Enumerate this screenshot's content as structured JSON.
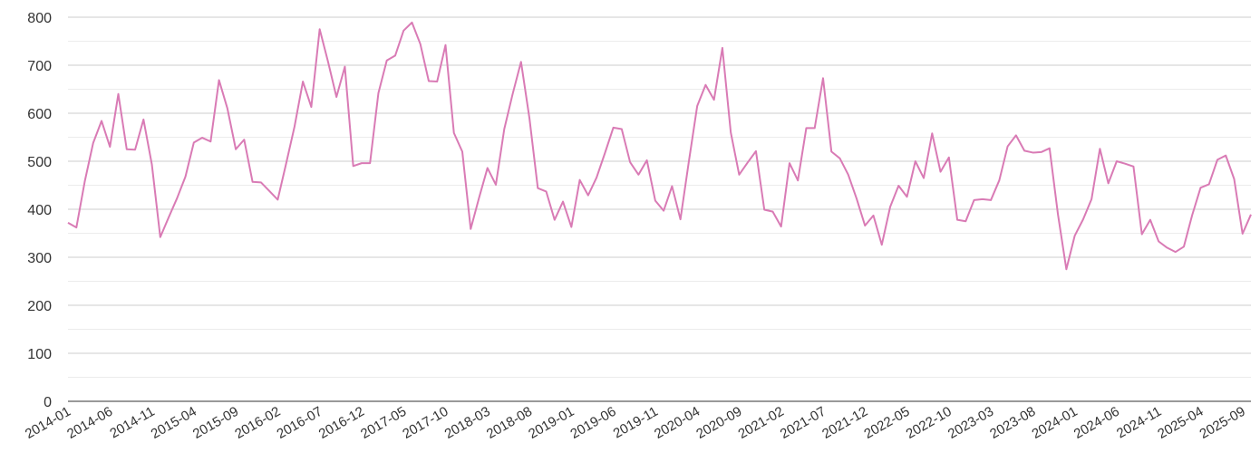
{
  "chart_data": {
    "type": "line",
    "title": "",
    "xlabel": "",
    "ylabel": "",
    "ylim": [
      0,
      800
    ],
    "yticks": [
      0,
      100,
      200,
      300,
      400,
      500,
      600,
      700,
      800
    ],
    "grid": true,
    "legend": "none",
    "x_tick_labels": [
      "2014-01",
      "2014-06",
      "2014-11",
      "2015-04",
      "2015-09",
      "2016-02",
      "2016-07",
      "2016-12",
      "2017-05",
      "2017-10",
      "2018-03",
      "2018-08",
      "2019-01",
      "2019-06",
      "2019-11",
      "2020-04",
      "2020-09",
      "2021-02",
      "2021-07",
      "2021-12",
      "2022-05",
      "2022-10",
      "2023-03",
      "2023-08",
      "2024-01",
      "2024-06",
      "2024-11",
      "2025-04",
      "2025-09"
    ],
    "x": [
      "2014-01",
      "2014-02",
      "2014-03",
      "2014-04",
      "2014-05",
      "2014-06",
      "2014-07",
      "2014-08",
      "2014-09",
      "2014-10",
      "2014-11",
      "2014-12",
      "2015-01",
      "2015-02",
      "2015-03",
      "2015-04",
      "2015-05",
      "2015-06",
      "2015-07",
      "2015-08",
      "2015-09",
      "2015-10",
      "2015-11",
      "2015-12",
      "2016-01",
      "2016-02",
      "2016-03",
      "2016-04",
      "2016-05",
      "2016-06",
      "2016-07",
      "2016-08",
      "2016-09",
      "2016-10",
      "2016-11",
      "2016-12",
      "2017-01",
      "2017-02",
      "2017-03",
      "2017-04",
      "2017-05",
      "2017-06",
      "2017-07",
      "2017-08",
      "2017-09",
      "2017-10",
      "2017-11",
      "2017-12",
      "2018-01",
      "2018-02",
      "2018-03",
      "2018-04",
      "2018-05",
      "2018-06",
      "2018-07",
      "2018-08",
      "2018-09",
      "2018-10",
      "2018-11",
      "2018-12",
      "2019-01",
      "2019-02",
      "2019-03",
      "2019-04",
      "2019-05",
      "2019-06",
      "2019-07",
      "2019-08",
      "2019-09",
      "2019-10",
      "2019-11",
      "2019-12",
      "2020-01",
      "2020-02",
      "2020-03",
      "2020-04",
      "2020-05",
      "2020-06",
      "2020-07",
      "2020-08",
      "2020-09",
      "2020-10",
      "2020-11",
      "2020-12",
      "2021-01",
      "2021-02",
      "2021-03",
      "2021-04",
      "2021-05",
      "2021-06",
      "2021-07",
      "2021-08",
      "2021-09",
      "2021-10",
      "2021-11",
      "2021-12",
      "2022-01",
      "2022-02",
      "2022-03",
      "2022-04",
      "2022-05",
      "2022-06",
      "2022-07",
      "2022-08",
      "2022-09",
      "2022-10",
      "2022-11",
      "2022-12",
      "2023-01",
      "2023-02",
      "2023-03",
      "2023-04",
      "2023-05",
      "2023-06",
      "2023-07",
      "2023-08",
      "2023-09",
      "2023-10",
      "2023-11",
      "2023-12",
      "2024-01",
      "2024-02",
      "2024-03",
      "2024-04",
      "2024-05",
      "2024-06",
      "2024-07",
      "2024-08",
      "2024-09",
      "2024-10",
      "2024-11",
      "2024-12",
      "2025-01",
      "2025-02",
      "2025-03",
      "2025-04",
      "2025-05",
      "2025-06",
      "2025-07",
      "2025-08",
      "2025-09",
      "2025-10"
    ],
    "series": [
      {
        "color": "#d97bb5",
        "values": [
          372,
          362,
          458,
          538,
          584,
          530,
          640,
          525,
          524,
          587,
          493,
          342,
          383,
          423,
          468,
          539,
          549,
          541,
          669,
          610,
          525,
          545,
          457,
          456,
          438,
          420,
          495,
          572,
          666,
          613,
          775,
          707,
          634,
          697,
          490,
          496,
          496,
          642,
          710,
          720,
          772,
          789,
          744,
          667,
          666,
          742,
          559,
          520,
          359,
          424,
          486,
          451,
          567,
          640,
          707,
          590,
          444,
          437,
          378,
          416,
          363,
          461,
          429,
          466,
          517,
          570,
          567,
          498,
          472,
          502,
          418,
          397,
          448,
          379,
          499,
          615,
          659,
          628,
          736,
          560,
          472,
          497,
          521,
          399,
          395,
          364,
          496,
          460,
          569,
          569,
          673,
          520,
          506,
          472,
          422,
          366,
          387,
          326,
          405,
          449,
          426,
          500,
          465,
          558,
          478,
          508,
          378,
          375,
          419,
          421,
          419,
          460,
          531,
          554,
          522,
          518,
          519,
          527,
          389,
          275,
          345,
          379,
          421,
          526,
          454,
          500,
          495,
          489,
          348,
          378,
          333,
          320,
          311,
          322,
          388,
          445,
          452,
          503,
          512,
          463,
          349,
          389
        ]
      }
    ]
  }
}
